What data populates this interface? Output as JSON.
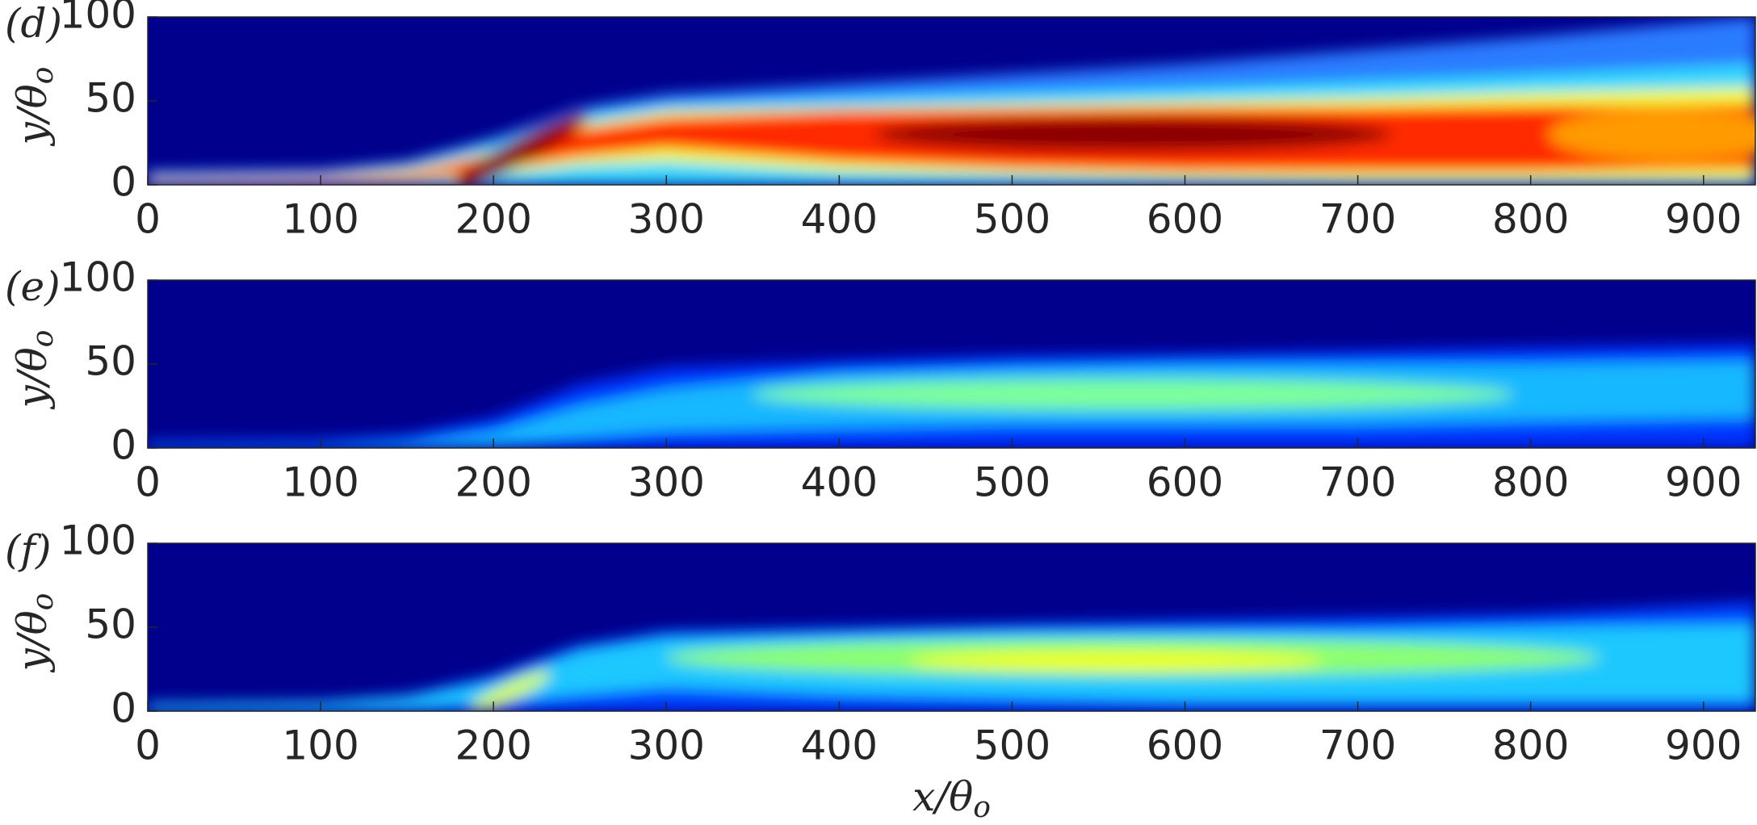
{
  "chart_data": [
    {
      "type": "heatmap",
      "panel_label": "(d)",
      "ylabel": "y/θ",
      "ylabel_subscript": "o",
      "xlim": [
        0,
        930
      ],
      "xticks": [
        0,
        100,
        200,
        300,
        400,
        500,
        600,
        700,
        800,
        900
      ],
      "ylim": [
        0,
        100
      ],
      "yticks": [
        0,
        50,
        100
      ]
    },
    {
      "type": "heatmap",
      "panel_label": "(e)",
      "ylabel": "y/θ",
      "ylabel_subscript": "o",
      "xlim": [
        0,
        930
      ],
      "xticks": [
        0,
        100,
        200,
        300,
        400,
        500,
        600,
        700,
        800,
        900
      ],
      "ylim": [
        0,
        100
      ],
      "yticks": [
        0,
        50,
        100
      ]
    },
    {
      "type": "heatmap",
      "panel_label": "(f)",
      "ylabel": "y/θ",
      "ylabel_subscript": "o",
      "xlabel": "x/θ",
      "xlabel_subscript": "o",
      "xlim": [
        0,
        930
      ],
      "xticks": [
        0,
        100,
        200,
        300,
        400,
        500,
        600,
        700,
        800,
        900
      ],
      "ylim": [
        0,
        100
      ],
      "yticks": [
        0,
        50,
        100
      ]
    }
  ]
}
